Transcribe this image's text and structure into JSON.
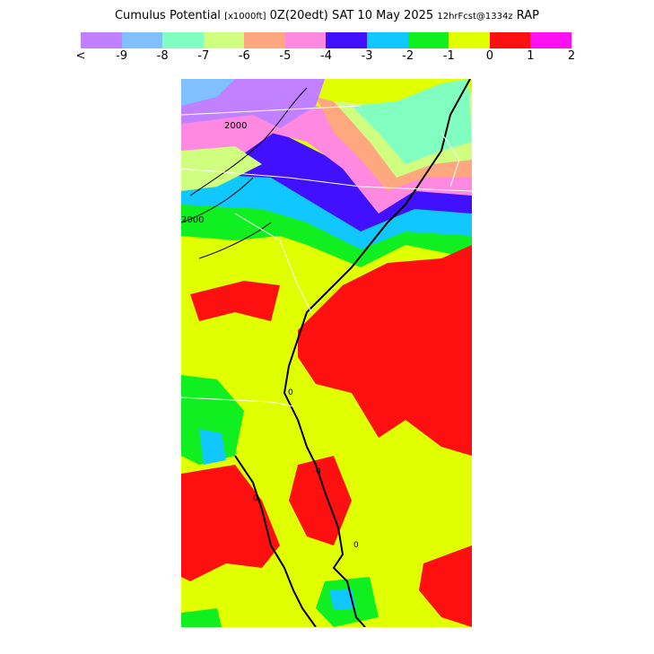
{
  "header": {
    "title": "Cumulus Potential",
    "units": "[x1000ft]",
    "time": "0Z(20edt) SAT 10 May 2025",
    "forecast": "12hrFcst@1334z",
    "model": "RAP"
  },
  "legend": {
    "swatches": [
      "#c080ff",
      "#80c0ff",
      "#80ffc0",
      "#d0ff80",
      "#ffa880",
      "#ff88e0",
      "#4010ff",
      "#10c8ff",
      "#10f020",
      "#e0ff00",
      "#ff1010",
      "#ff10f0"
    ],
    "ticks": [
      "<",
      "-9",
      "-8",
      "-7",
      "-6",
      "-5",
      "-4",
      "-3",
      "-2",
      "-1",
      "0",
      "1",
      "2"
    ]
  },
  "map": {
    "contour_labels": [
      "2000",
      "2000",
      "0",
      "0",
      "0",
      "0"
    ]
  }
}
